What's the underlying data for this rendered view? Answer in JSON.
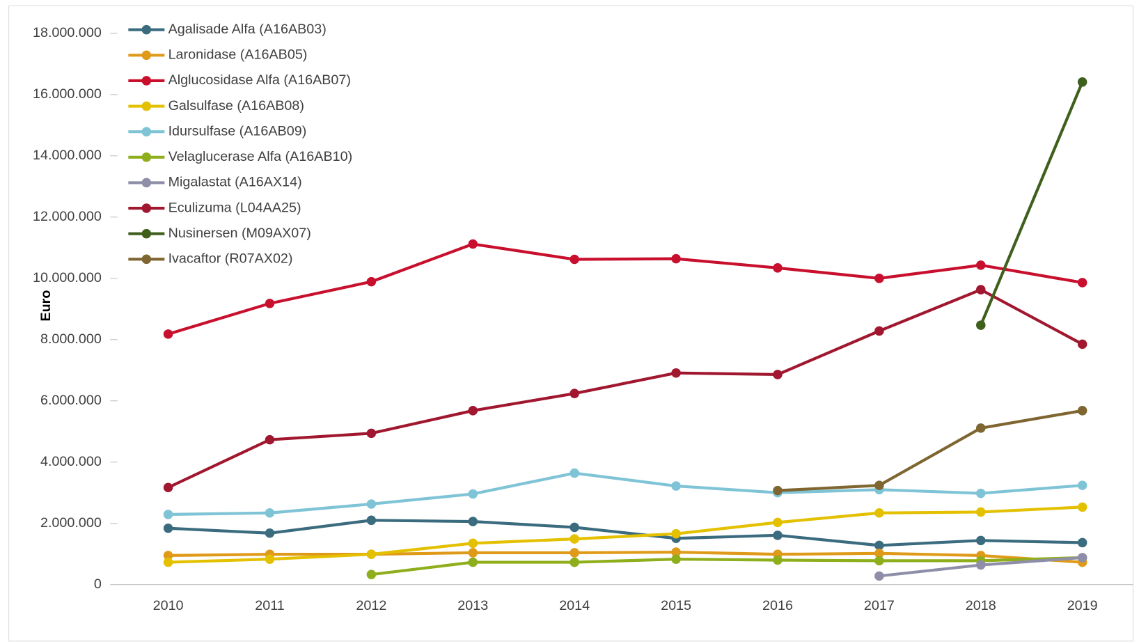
{
  "chart_data": {
    "type": "line",
    "y_label": "Euro",
    "categories": [
      "2010",
      "2011",
      "2012",
      "2013",
      "2014",
      "2015",
      "2016",
      "2017",
      "2018",
      "2019"
    ],
    "ylim": [
      0,
      18000000
    ],
    "yticks": [
      0,
      {
        "value": 2000000,
        "label": "2.000.000"
      },
      {
        "value": 4000000,
        "label": "4.000.000"
      },
      {
        "value": 6000000,
        "label": "6.000.000"
      },
      {
        "value": 8000000,
        "label": "8.000.000"
      },
      {
        "value": 10000000,
        "label": "10.000.000"
      },
      {
        "value": 12000000,
        "label": "12.000.000"
      },
      {
        "value": 14000000,
        "label": "14.000.000"
      },
      {
        "value": 16000000,
        "label": "16.000.000"
      },
      {
        "value": 18000000,
        "label": "18.000.000"
      }
    ],
    "legend": "top-left",
    "series": [
      {
        "name": "Agalisade Alfa (A16AB03)",
        "color": "#3a6b7e",
        "values": [
          1840000,
          1680000,
          2100000,
          2060000,
          1870000,
          1510000,
          1610000,
          1280000,
          1440000,
          1370000
        ]
      },
      {
        "name": "Laronidase (A16AB05)",
        "color": "#e09a1a",
        "values": [
          950000,
          990000,
          990000,
          1040000,
          1040000,
          1060000,
          990000,
          1020000,
          950000,
          730000
        ]
      },
      {
        "name": "Alglucosidase Alfa (A16AB07)",
        "color": "#c8102e",
        "values": [
          8180000,
          9180000,
          9890000,
          11120000,
          10620000,
          10640000,
          10340000,
          10000000,
          10430000,
          9860000
        ]
      },
      {
        "name": "Galsulfase (A16AB08)",
        "color": "#e3c000",
        "values": [
          730000,
          830000,
          990000,
          1350000,
          1490000,
          1660000,
          2030000,
          2340000,
          2370000,
          2530000
        ]
      },
      {
        "name": "Idursulfase (A16AB09)",
        "color": "#7fc4d6",
        "values": [
          2290000,
          2340000,
          2630000,
          2960000,
          3640000,
          3220000,
          3000000,
          3100000,
          2980000,
          3240000
        ]
      },
      {
        "name": "Velaglucerase Alfa (A16AB10)",
        "color": "#8fae1b",
        "values": [
          null,
          null,
          330000,
          730000,
          730000,
          830000,
          800000,
          780000,
          780000,
          880000
        ]
      },
      {
        "name": "Migalastat (A16AX14)",
        "color": "#8e8ea8",
        "values": [
          null,
          null,
          null,
          null,
          null,
          null,
          null,
          280000,
          640000,
          880000
        ]
      },
      {
        "name": "Eculizuma (L04AA25)",
        "color": "#a0172f",
        "values": [
          3170000,
          4730000,
          4940000,
          5680000,
          6240000,
          6910000,
          6860000,
          8280000,
          9630000,
          7850000
        ]
      },
      {
        "name": "Nusinersen (M09AX07)",
        "color": "#3f5f1c",
        "values": [
          null,
          null,
          null,
          null,
          null,
          null,
          null,
          null,
          8470000,
          16410000
        ]
      },
      {
        "name": "Ivacaftor (R07AX02)",
        "color": "#7f6530",
        "values": [
          null,
          null,
          null,
          null,
          null,
          null,
          3070000,
          3240000,
          5110000,
          5680000
        ]
      }
    ]
  }
}
